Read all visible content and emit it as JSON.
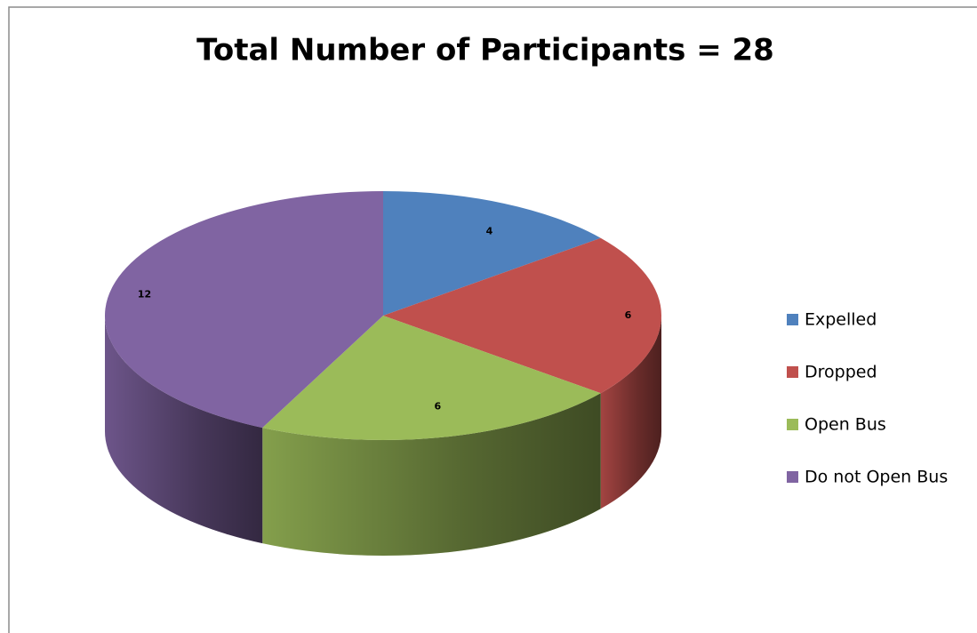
{
  "chart_data": {
    "type": "pie3d",
    "title": "Total Number of Participants = 28",
    "categories": [
      "Expelled",
      "Dropped",
      "Open Bus",
      "Do not Open Bus"
    ],
    "values": [
      4,
      6,
      6,
      12
    ],
    "colors": [
      "#4f81bd",
      "#c0504d",
      "#9bbb59",
      "#8064a2"
    ],
    "legend": "right"
  }
}
